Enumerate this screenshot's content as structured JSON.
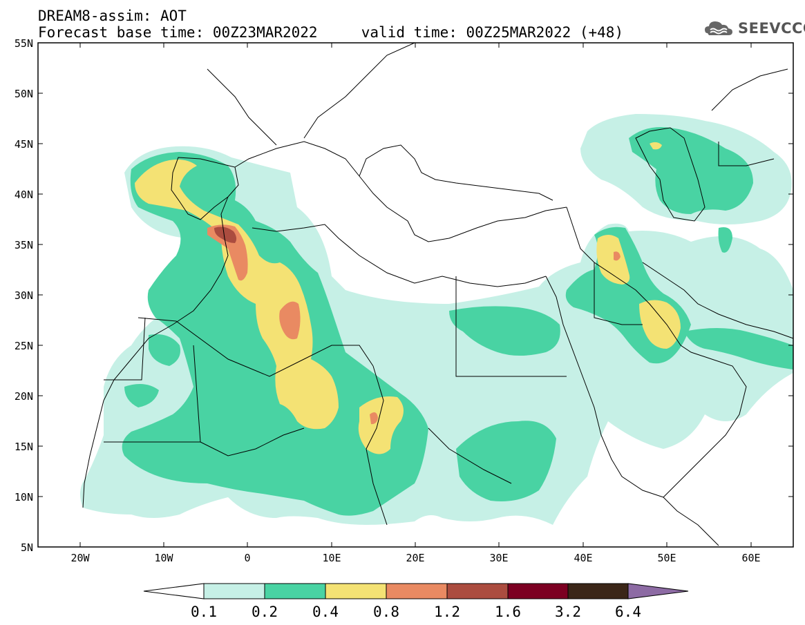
{
  "header": {
    "line1": "DREAM8-assim: AOT",
    "line2": "Forecast base time: 00Z23MAR2022     valid time: 00Z25MAR2022 (+48)"
  },
  "logo": {
    "text": "SEEVCCC"
  },
  "map": {
    "lon_range": [
      -25,
      65
    ],
    "lat_range": [
      5,
      55
    ],
    "lat_ticks": [
      "55N",
      "50N",
      "45N",
      "40N",
      "35N",
      "30N",
      "25N",
      "20N",
      "15N",
      "10N",
      "5N"
    ],
    "lon_ticks": [
      "20W",
      "10W",
      "0",
      "10E",
      "20E",
      "30E",
      "40E",
      "50E",
      "60E"
    ]
  },
  "colorbar": {
    "labels": [
      "0.1",
      "0.2",
      "0.4",
      "0.8",
      "1.2",
      "1.6",
      "3.2",
      "6.4"
    ],
    "colors": [
      "#c6f0e6",
      "#49d3a3",
      "#f4e274",
      "#e98a62",
      "#ab4c3f",
      "#7c0022",
      "#3b2618",
      "#8d6ba4"
    ]
  },
  "colors": {
    "level1": "#c6f0e6",
    "level2": "#49d3a3",
    "level3": "#f4e274",
    "level4": "#e98a62",
    "level5": "#ab4c3f"
  }
}
